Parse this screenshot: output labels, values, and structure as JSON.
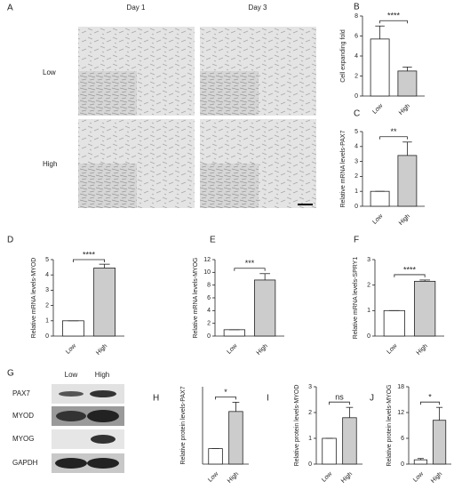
{
  "panel_a": {
    "letter": "A",
    "columns": [
      "Day 1",
      "Day 3"
    ],
    "rows": [
      "Low",
      "High"
    ]
  },
  "panel_g": {
    "letter": "G",
    "columns": [
      "Low",
      "High"
    ],
    "rows": [
      "PAX7",
      "MYOD",
      "MYOG",
      "GAPDH"
    ]
  },
  "chart_data": [
    {
      "type": "bar",
      "panel": "B",
      "y_label": "Cell expanding fold",
      "categories": [
        "Low",
        "High"
      ],
      "values": [
        5.7,
        2.5
      ],
      "errors": [
        1.3,
        0.4
      ],
      "colors": [
        "#ffffff",
        "#cccccc"
      ],
      "ylim": [
        0,
        8
      ],
      "yticks": [
        0,
        2,
        4,
        6,
        8
      ],
      "sig": "****"
    },
    {
      "type": "bar",
      "panel": "C",
      "y_label": "Relative mRNA levels-PAX7",
      "categories": [
        "Low",
        "High"
      ],
      "values": [
        1,
        3.4
      ],
      "errors": [
        0,
        0.9
      ],
      "colors": [
        "#ffffff",
        "#cccccc"
      ],
      "ylim": [
        0,
        5
      ],
      "yticks": [
        0,
        1,
        2,
        3,
        4,
        5
      ],
      "sig": "**"
    },
    {
      "type": "bar",
      "panel": "D",
      "y_label": "Relative mRNA levels-MYOD",
      "categories": [
        "Low",
        "High"
      ],
      "values": [
        1,
        4.45
      ],
      "errors": [
        0,
        0.25
      ],
      "colors": [
        "#ffffff",
        "#cccccc"
      ],
      "ylim": [
        0,
        5
      ],
      "yticks": [
        0,
        1,
        2,
        3,
        4,
        5
      ],
      "sig": "****"
    },
    {
      "type": "bar",
      "panel": "E",
      "y_label": "Relative mRNA levels-MYOG",
      "categories": [
        "Low",
        "High"
      ],
      "values": [
        1,
        8.8
      ],
      "errors": [
        0,
        1.0
      ],
      "colors": [
        "#ffffff",
        "#cccccc"
      ],
      "ylim": [
        0,
        12
      ],
      "yticks": [
        0,
        2,
        4,
        6,
        8,
        10,
        12
      ],
      "sig": "***"
    },
    {
      "type": "bar",
      "panel": "F",
      "y_label": "Relative mRNA levels-SPRY1",
      "categories": [
        "Low",
        "High"
      ],
      "values": [
        1,
        2.15
      ],
      "errors": [
        0,
        0.05
      ],
      "colors": [
        "#ffffff",
        "#cccccc"
      ],
      "ylim": [
        0,
        3
      ],
      "yticks": [
        0,
        1,
        2,
        3
      ],
      "sig": "****"
    },
    {
      "type": "bar",
      "panel": "H",
      "y_label": "Relative protein levels-PAX7",
      "categories": [
        "Low",
        "High"
      ],
      "values": [
        1,
        3.4
      ],
      "errors": [
        0,
        0.6
      ],
      "colors": [
        "#ffffff",
        "#cccccc"
      ],
      "ylim": [
        0,
        5
      ],
      "sig": "*"
    },
    {
      "type": "bar",
      "panel": "I",
      "y_label": "Relative protein levels-MYOD",
      "categories": [
        "Low",
        "High"
      ],
      "values": [
        1,
        1.8
      ],
      "errors": [
        0,
        0.4
      ],
      "colors": [
        "#ffffff",
        "#cccccc"
      ],
      "ylim": [
        0,
        3
      ],
      "yticks": [
        0,
        1,
        2,
        3
      ],
      "sig": "ns"
    },
    {
      "type": "bar",
      "panel": "J",
      "y_label": "Relative protein levels-MYOG",
      "categories": [
        "Low",
        "High"
      ],
      "values": [
        1,
        10.2
      ],
      "errors": [
        0.3,
        3
      ],
      "colors": [
        "#ffffff",
        "#cccccc"
      ],
      "ylim": [
        0,
        18
      ],
      "yticks": [
        0,
        6,
        12,
        18
      ],
      "sig": "*"
    }
  ]
}
